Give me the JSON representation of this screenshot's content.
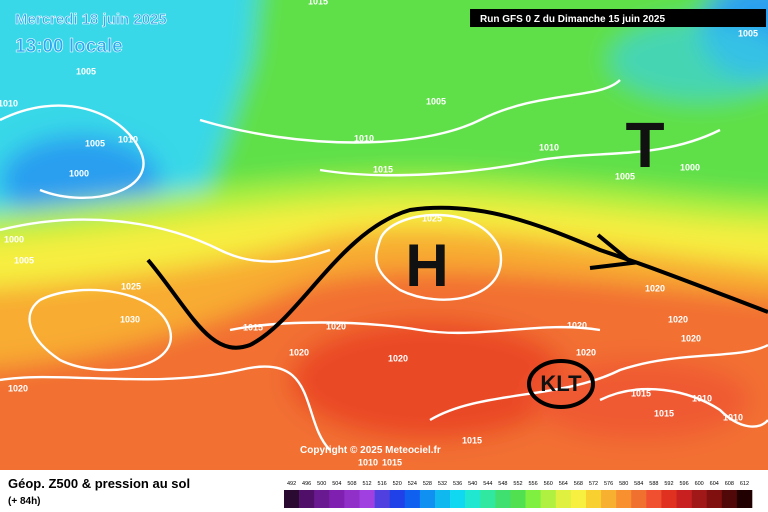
{
  "header": {
    "date": "Mercredi 18 juin 2025",
    "time": "13:00 locale",
    "run": "Run GFS 0 Z du Dimanche 15 juin 2025"
  },
  "copyright": "Copyright © 2025 Meteociel.fr",
  "features": {
    "high": "H",
    "trough": "T",
    "cutoff": "KLT"
  },
  "isobars": [
    "1015",
    "1005",
    "1005",
    "1010",
    "1005",
    "1005",
    "1010",
    "1010",
    "1010",
    "1015",
    "1000",
    "1005",
    "1000",
    "1025",
    "1000",
    "1005",
    "1025",
    "1020",
    "1030",
    "1015",
    "1020",
    "1020",
    "1020",
    "1020",
    "1020",
    "1020",
    "1020",
    "1020",
    "1015",
    "1015",
    "1010",
    "1010",
    "1015",
    "1010",
    "1015"
  ],
  "legend": {
    "title": "Géop. Z500 & pression au sol",
    "lead": "(+ 84h)",
    "ticks": [
      492,
      496,
      500,
      504,
      508,
      512,
      516,
      520,
      524,
      528,
      532,
      536,
      540,
      544,
      548,
      552,
      556,
      560,
      564,
      568,
      572,
      576,
      580,
      584,
      588,
      592,
      596,
      600,
      604,
      608,
      612
    ],
    "colors": [
      "#2a0a30",
      "#50106a",
      "#6a1a90",
      "#8020b0",
      "#9030c8",
      "#a040e0",
      "#5040e0",
      "#2040e8",
      "#1060f0",
      "#1090f0",
      "#10b8f0",
      "#10d8f0",
      "#20e8d0",
      "#30e8a0",
      "#40e070",
      "#50e050",
      "#80f040",
      "#b0f040",
      "#e0f040",
      "#f8f040",
      "#f8d030",
      "#f8b030",
      "#f89030",
      "#f07030",
      "#f05030",
      "#e03020",
      "#c82020",
      "#a01818",
      "#801010",
      "#500808",
      "#200000"
    ]
  }
}
